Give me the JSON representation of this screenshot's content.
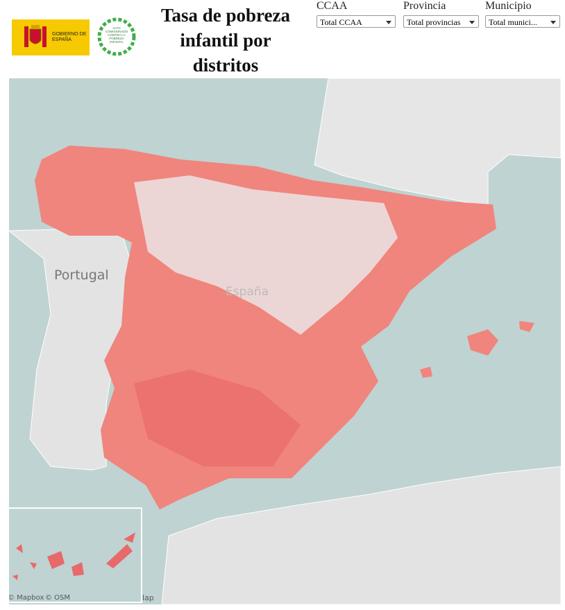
{
  "header": {
    "logo_gobierno": "GOBIERNO DE ESPAÑA",
    "logo_alto_comisionado": "ALTO COMISIONADO CONTRA LA POBREZA INFANTIL",
    "title": "Tasa de pobreza infantil por distritos"
  },
  "filters": [
    {
      "label": "CCAA",
      "value": "Total CCAA"
    },
    {
      "label": "Provincia",
      "value": "Total provincias"
    },
    {
      "label": "Municipio",
      "value": "Total munici..."
    }
  ],
  "map": {
    "labels": [
      "Portugal",
      "España"
    ],
    "attribution": [
      "© Mapbox",
      "© OSM"
    ],
    "cut_label": "lap"
  }
}
